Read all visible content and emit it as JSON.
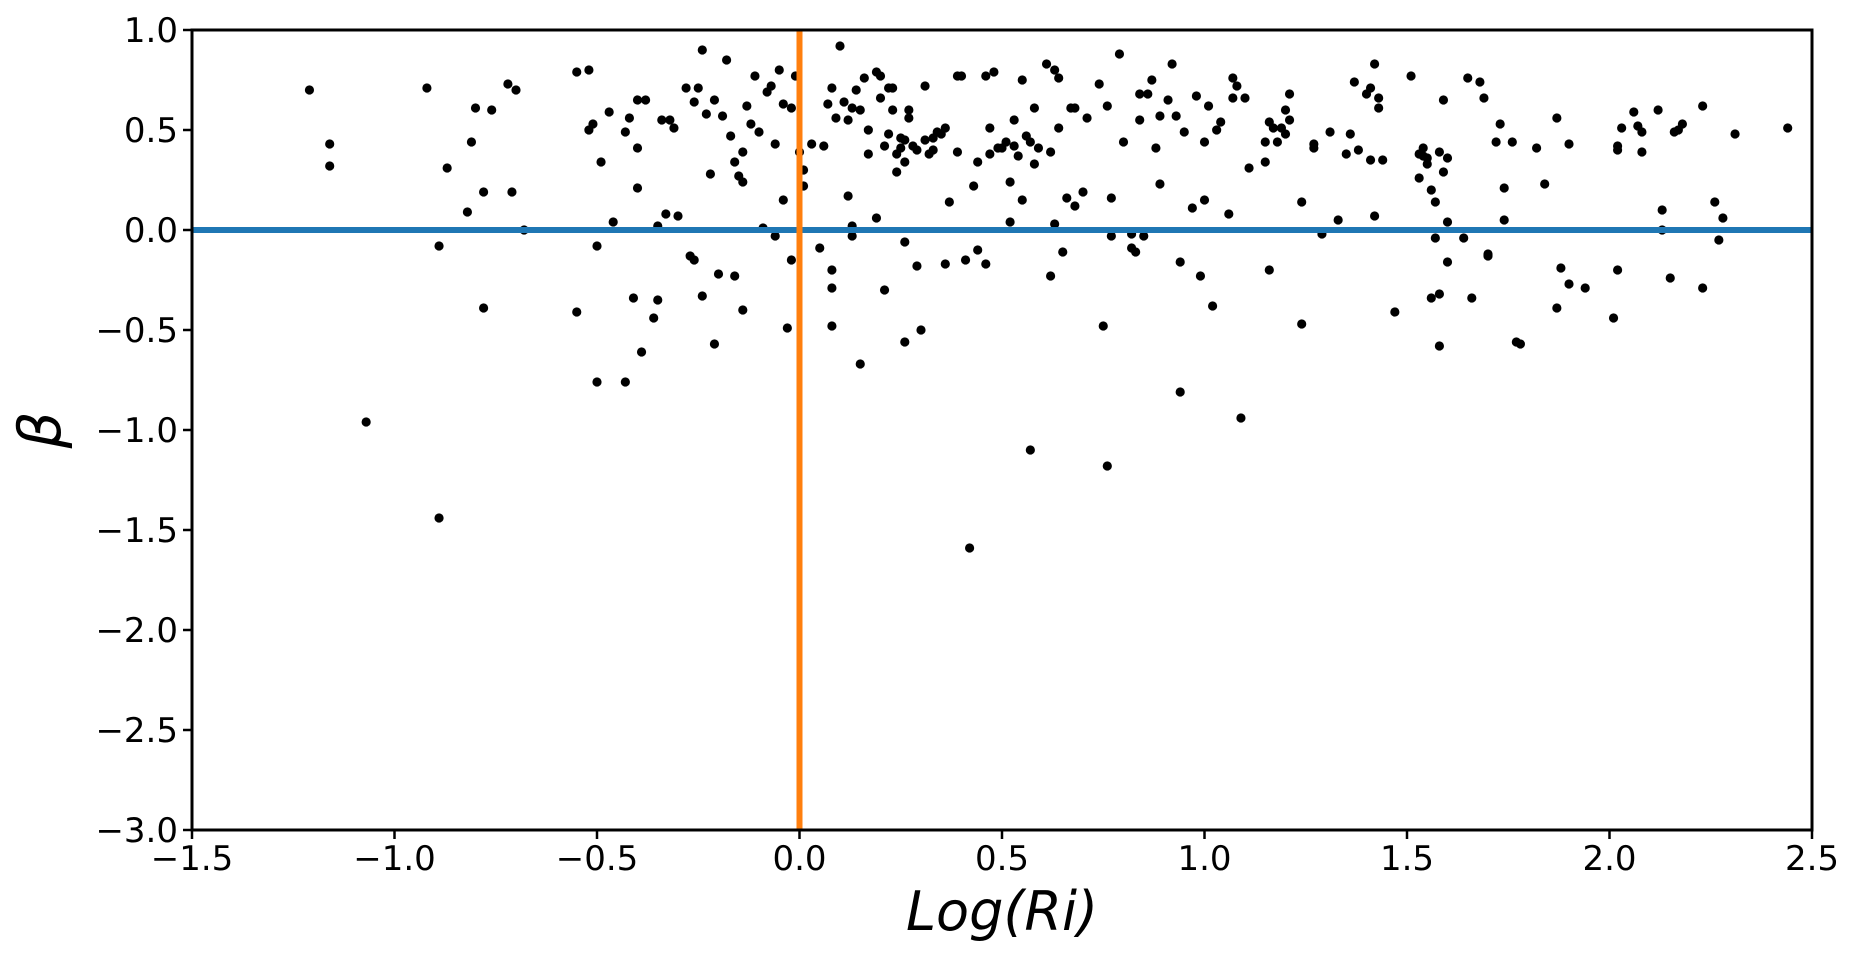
{
  "chart_data": {
    "type": "scatter",
    "title": "",
    "xlabel": "Log(Ri)",
    "ylabel": "β",
    "xlim": [
      -1.5,
      2.5
    ],
    "ylim": [
      -3.0,
      1.0
    ],
    "x_ticks": [
      -1.5,
      -1.0,
      -0.5,
      0.0,
      0.5,
      1.0,
      1.5,
      2.0,
      2.5
    ],
    "x_tick_labels": [
      "−1.5",
      "−1.0",
      "−0.5",
      "0.0",
      "0.5",
      "1.0",
      "1.5",
      "2.0",
      "2.5"
    ],
    "y_ticks": [
      1.0,
      0.5,
      0.0,
      -0.5,
      -1.0,
      -1.5,
      -2.0,
      -2.5,
      -3.0
    ],
    "y_tick_labels": [
      "1.0",
      "0.5",
      "0.0",
      "−0.5",
      "−1.0",
      "−1.5",
      "−2.0",
      "−2.5",
      "−3.0"
    ],
    "grid": false,
    "reference_lines": [
      {
        "orientation": "horizontal",
        "value": 0.0,
        "color": "#1f77b4"
      },
      {
        "orientation": "vertical",
        "value": 0.0,
        "color": "#ff7f0e"
      }
    ],
    "point_color": "#000000",
    "points": [
      [
        -1.21,
        0.7
      ],
      [
        -1.16,
        0.43
      ],
      [
        -1.16,
        0.32
      ],
      [
        -1.07,
        -0.96
      ],
      [
        -0.92,
        0.71
      ],
      [
        -0.89,
        -0.08
      ],
      [
        -0.89,
        -1.44
      ],
      [
        -0.87,
        0.31
      ],
      [
        -0.82,
        0.09
      ],
      [
        -0.81,
        0.44
      ],
      [
        -0.8,
        0.61
      ],
      [
        -0.78,
        0.19
      ],
      [
        -0.78,
        -0.39
      ],
      [
        -0.76,
        0.6
      ],
      [
        -0.72,
        0.73
      ],
      [
        -0.71,
        0.19
      ],
      [
        -0.7,
        0.7
      ],
      [
        -0.68,
        0.0
      ],
      [
        -0.55,
        0.79
      ],
      [
        -0.55,
        -0.41
      ],
      [
        -0.52,
        0.8
      ],
      [
        -0.52,
        0.5
      ],
      [
        -0.51,
        0.53
      ],
      [
        -0.5,
        -0.08
      ],
      [
        -0.5,
        -0.76
      ],
      [
        -0.49,
        0.34
      ],
      [
        -0.47,
        0.59
      ],
      [
        -0.46,
        0.04
      ],
      [
        -0.43,
        0.49
      ],
      [
        -0.43,
        -0.76
      ],
      [
        -0.42,
        0.56
      ],
      [
        -0.41,
        -0.34
      ],
      [
        -0.4,
        0.65
      ],
      [
        -0.4,
        0.41
      ],
      [
        -0.4,
        0.21
      ],
      [
        -0.39,
        -0.61
      ],
      [
        -0.38,
        0.65
      ],
      [
        -0.36,
        -0.44
      ],
      [
        -0.35,
        0.02
      ],
      [
        -0.35,
        -0.35
      ],
      [
        -0.34,
        0.55
      ],
      [
        -0.33,
        0.08
      ],
      [
        -0.32,
        0.55
      ],
      [
        -0.31,
        0.51
      ],
      [
        -0.3,
        0.07
      ],
      [
        -0.28,
        0.71
      ],
      [
        -0.27,
        -0.13
      ],
      [
        -0.26,
        0.64
      ],
      [
        -0.26,
        -0.15
      ],
      [
        -0.25,
        0.71
      ],
      [
        -0.24,
        0.9
      ],
      [
        -0.24,
        -0.33
      ],
      [
        -0.23,
        0.58
      ],
      [
        -0.22,
        0.28
      ],
      [
        -0.21,
        0.65
      ],
      [
        -0.21,
        -0.57
      ],
      [
        -0.2,
        -0.22
      ],
      [
        -0.19,
        0.57
      ],
      [
        -0.18,
        0.85
      ],
      [
        -0.17,
        0.47
      ],
      [
        -0.16,
        0.34
      ],
      [
        -0.16,
        -0.23
      ],
      [
        -0.15,
        0.27
      ],
      [
        -0.14,
        0.39
      ],
      [
        -0.14,
        0.24
      ],
      [
        -0.14,
        -0.4
      ],
      [
        -0.13,
        0.62
      ],
      [
        -0.12,
        0.53
      ],
      [
        -0.11,
        0.77
      ],
      [
        -0.1,
        0.49
      ],
      [
        -0.09,
        0.01
      ],
      [
        -0.08,
        0.69
      ],
      [
        -0.07,
        0.72
      ],
      [
        -0.06,
        0.43
      ],
      [
        -0.06,
        -0.03
      ],
      [
        -0.05,
        0.8
      ],
      [
        -0.04,
        0.63
      ],
      [
        -0.04,
        0.15
      ],
      [
        -0.03,
        -0.49
      ],
      [
        -0.02,
        0.61
      ],
      [
        -0.02,
        -0.15
      ],
      [
        -0.01,
        0.77
      ],
      [
        0.0,
        0.39
      ],
      [
        0.01,
        0.3
      ],
      [
        0.01,
        0.22
      ],
      [
        0.03,
        0.43
      ],
      [
        0.05,
        -0.09
      ],
      [
        0.06,
        0.42
      ],
      [
        0.07,
        0.63
      ],
      [
        0.08,
        0.71
      ],
      [
        0.08,
        -0.2
      ],
      [
        0.08,
        -0.29
      ],
      [
        0.08,
        -0.48
      ],
      [
        0.09,
        0.56
      ],
      [
        0.1,
        0.92
      ],
      [
        0.11,
        0.64
      ],
      [
        0.12,
        0.55
      ],
      [
        0.12,
        0.17
      ],
      [
        0.13,
        0.02
      ],
      [
        0.13,
        -0.03
      ],
      [
        0.13,
        0.61
      ],
      [
        0.14,
        0.7
      ],
      [
        0.15,
        0.6
      ],
      [
        0.15,
        -0.67
      ],
      [
        0.16,
        0.76
      ],
      [
        0.17,
        0.38
      ],
      [
        0.17,
        0.5
      ],
      [
        0.19,
        0.79
      ],
      [
        0.19,
        0.06
      ],
      [
        0.2,
        0.66
      ],
      [
        0.2,
        0.77
      ],
      [
        0.21,
        -0.3
      ],
      [
        0.21,
        0.42
      ],
      [
        0.22,
        0.71
      ],
      [
        0.22,
        0.48
      ],
      [
        0.23,
        0.71
      ],
      [
        0.23,
        0.6
      ],
      [
        0.24,
        0.38
      ],
      [
        0.24,
        0.29
      ],
      [
        0.25,
        0.46
      ],
      [
        0.25,
        0.41
      ],
      [
        0.26,
        -0.06
      ],
      [
        0.26,
        -0.56
      ],
      [
        0.26,
        0.34
      ],
      [
        0.26,
        0.45
      ],
      [
        0.27,
        0.6
      ],
      [
        0.27,
        0.56
      ],
      [
        0.28,
        0.42
      ],
      [
        0.29,
        0.4
      ],
      [
        0.29,
        -0.18
      ],
      [
        0.3,
        -0.5
      ],
      [
        0.31,
        0.72
      ],
      [
        0.31,
        0.45
      ],
      [
        0.32,
        0.38
      ],
      [
        0.33,
        0.46
      ],
      [
        0.33,
        0.4
      ],
      [
        0.34,
        0.49
      ],
      [
        0.35,
        0.48
      ],
      [
        0.36,
        0.51
      ],
      [
        0.36,
        -0.17
      ],
      [
        0.37,
        0.14
      ],
      [
        0.39,
        0.77
      ],
      [
        0.39,
        0.39
      ],
      [
        0.4,
        0.77
      ],
      [
        0.41,
        -0.15
      ],
      [
        0.42,
        -1.59
      ],
      [
        0.43,
        0.22
      ],
      [
        0.44,
        0.34
      ],
      [
        0.44,
        -0.1
      ],
      [
        0.46,
        0.77
      ],
      [
        0.46,
        -0.17
      ],
      [
        0.47,
        0.38
      ],
      [
        0.47,
        0.51
      ],
      [
        0.48,
        0.79
      ],
      [
        0.49,
        0.41
      ],
      [
        0.5,
        0.41
      ],
      [
        0.51,
        0.44
      ],
      [
        0.52,
        0.24
      ],
      [
        0.52,
        0.04
      ],
      [
        0.53,
        0.42
      ],
      [
        0.53,
        0.55
      ],
      [
        0.54,
        0.37
      ],
      [
        0.55,
        0.75
      ],
      [
        0.55,
        0.15
      ],
      [
        0.56,
        0.47
      ],
      [
        0.57,
        0.44
      ],
      [
        0.57,
        -1.1
      ],
      [
        0.58,
        0.33
      ],
      [
        0.58,
        0.61
      ],
      [
        0.59,
        0.41
      ],
      [
        0.61,
        0.83
      ],
      [
        0.62,
        0.39
      ],
      [
        0.62,
        -0.23
      ],
      [
        0.63,
        0.8
      ],
      [
        0.63,
        0.03
      ],
      [
        0.64,
        0.76
      ],
      [
        0.64,
        0.51
      ],
      [
        0.65,
        -0.11
      ],
      [
        0.66,
        0.16
      ],
      [
        0.67,
        0.61
      ],
      [
        0.68,
        0.61
      ],
      [
        0.68,
        0.12
      ],
      [
        0.7,
        0.19
      ],
      [
        0.71,
        0.56
      ],
      [
        0.74,
        0.73
      ],
      [
        0.75,
        -0.48
      ],
      [
        0.76,
        0.62
      ],
      [
        0.76,
        -1.18
      ],
      [
        0.77,
        -0.03
      ],
      [
        0.77,
        0.16
      ],
      [
        0.79,
        0.88
      ],
      [
        0.8,
        0.44
      ],
      [
        0.82,
        -0.02
      ],
      [
        0.82,
        -0.09
      ],
      [
        0.83,
        -0.11
      ],
      [
        0.84,
        0.55
      ],
      [
        0.84,
        0.68
      ],
      [
        0.85,
        -0.03
      ],
      [
        0.86,
        0.68
      ],
      [
        0.87,
        0.75
      ],
      [
        0.88,
        0.41
      ],
      [
        0.89,
        0.23
      ],
      [
        0.89,
        0.57
      ],
      [
        0.91,
        0.65
      ],
      [
        0.92,
        0.83
      ],
      [
        0.93,
        0.57
      ],
      [
        0.94,
        -0.81
      ],
      [
        0.94,
        -0.16
      ],
      [
        0.95,
        0.49
      ],
      [
        0.97,
        0.11
      ],
      [
        0.98,
        0.67
      ],
      [
        0.99,
        -0.23
      ],
      [
        1.0,
        0.44
      ],
      [
        1.0,
        0.15
      ],
      [
        1.01,
        0.62
      ],
      [
        1.02,
        -0.38
      ],
      [
        1.03,
        0.5
      ],
      [
        1.04,
        0.54
      ],
      [
        1.06,
        0.08
      ],
      [
        1.07,
        0.66
      ],
      [
        1.07,
        0.76
      ],
      [
        1.08,
        0.72
      ],
      [
        1.09,
        -0.94
      ],
      [
        1.1,
        0.66
      ],
      [
        1.11,
        0.31
      ],
      [
        1.15,
        0.44
      ],
      [
        1.15,
        0.34
      ],
      [
        1.16,
        0.54
      ],
      [
        1.16,
        -0.2
      ],
      [
        1.17,
        0.51
      ],
      [
        1.18,
        0.44
      ],
      [
        1.19,
        0.51
      ],
      [
        1.2,
        0.6
      ],
      [
        1.2,
        0.48
      ],
      [
        1.21,
        0.68
      ],
      [
        1.21,
        0.55
      ],
      [
        1.24,
        0.14
      ],
      [
        1.24,
        -0.47
      ],
      [
        1.27,
        0.43
      ],
      [
        1.27,
        0.41
      ],
      [
        1.29,
        -0.02
      ],
      [
        1.31,
        0.49
      ],
      [
        1.33,
        0.05
      ],
      [
        1.35,
        0.38
      ],
      [
        1.36,
        0.48
      ],
      [
        1.37,
        0.74
      ],
      [
        1.38,
        0.4
      ],
      [
        1.4,
        0.68
      ],
      [
        1.41,
        0.71
      ],
      [
        1.41,
        0.35
      ],
      [
        1.42,
        0.07
      ],
      [
        1.42,
        0.83
      ],
      [
        1.43,
        0.66
      ],
      [
        1.43,
        0.61
      ],
      [
        1.44,
        0.35
      ],
      [
        1.47,
        -0.41
      ],
      [
        1.51,
        0.77
      ],
      [
        1.53,
        0.38
      ],
      [
        1.53,
        0.26
      ],
      [
        1.54,
        0.41
      ],
      [
        1.54,
        0.37
      ],
      [
        1.55,
        0.36
      ],
      [
        1.55,
        0.33
      ],
      [
        1.56,
        0.2
      ],
      [
        1.56,
        -0.34
      ],
      [
        1.57,
        0.14
      ],
      [
        1.57,
        -0.04
      ],
      [
        1.58,
        0.39
      ],
      [
        1.58,
        -0.32
      ],
      [
        1.58,
        -0.58
      ],
      [
        1.59,
        0.65
      ],
      [
        1.59,
        0.29
      ],
      [
        1.6,
        0.04
      ],
      [
        1.6,
        0.36
      ],
      [
        1.6,
        -0.16
      ],
      [
        1.64,
        -0.04
      ],
      [
        1.65,
        0.76
      ],
      [
        1.66,
        -0.34
      ],
      [
        1.68,
        0.74
      ],
      [
        1.69,
        0.66
      ],
      [
        1.7,
        -0.12
      ],
      [
        1.7,
        -0.13
      ],
      [
        1.72,
        0.44
      ],
      [
        1.73,
        0.53
      ],
      [
        1.74,
        0.21
      ],
      [
        1.74,
        0.05
      ],
      [
        1.76,
        0.44
      ],
      [
        1.77,
        -0.56
      ],
      [
        1.78,
        -0.57
      ],
      [
        1.82,
        0.41
      ],
      [
        1.84,
        0.23
      ],
      [
        1.87,
        0.56
      ],
      [
        1.87,
        -0.39
      ],
      [
        1.88,
        -0.19
      ],
      [
        1.9,
        -0.27
      ],
      [
        1.9,
        0.43
      ],
      [
        1.94,
        -0.29
      ],
      [
        2.01,
        -0.44
      ],
      [
        2.02,
        0.4
      ],
      [
        2.02,
        0.42
      ],
      [
        2.02,
        -0.2
      ],
      [
        2.03,
        0.51
      ],
      [
        2.06,
        0.59
      ],
      [
        2.07,
        0.52
      ],
      [
        2.08,
        0.39
      ],
      [
        2.08,
        0.49
      ],
      [
        2.12,
        0.6
      ],
      [
        2.13,
        0.1
      ],
      [
        2.13,
        0.0
      ],
      [
        2.15,
        -0.24
      ],
      [
        2.16,
        0.49
      ],
      [
        2.17,
        0.5
      ],
      [
        2.18,
        0.53
      ],
      [
        2.23,
        -0.29
      ],
      [
        2.23,
        0.62
      ],
      [
        2.26,
        0.14
      ],
      [
        2.27,
        -0.05
      ],
      [
        2.28,
        0.06
      ],
      [
        2.31,
        0.48
      ],
      [
        2.44,
        0.51
      ]
    ]
  }
}
